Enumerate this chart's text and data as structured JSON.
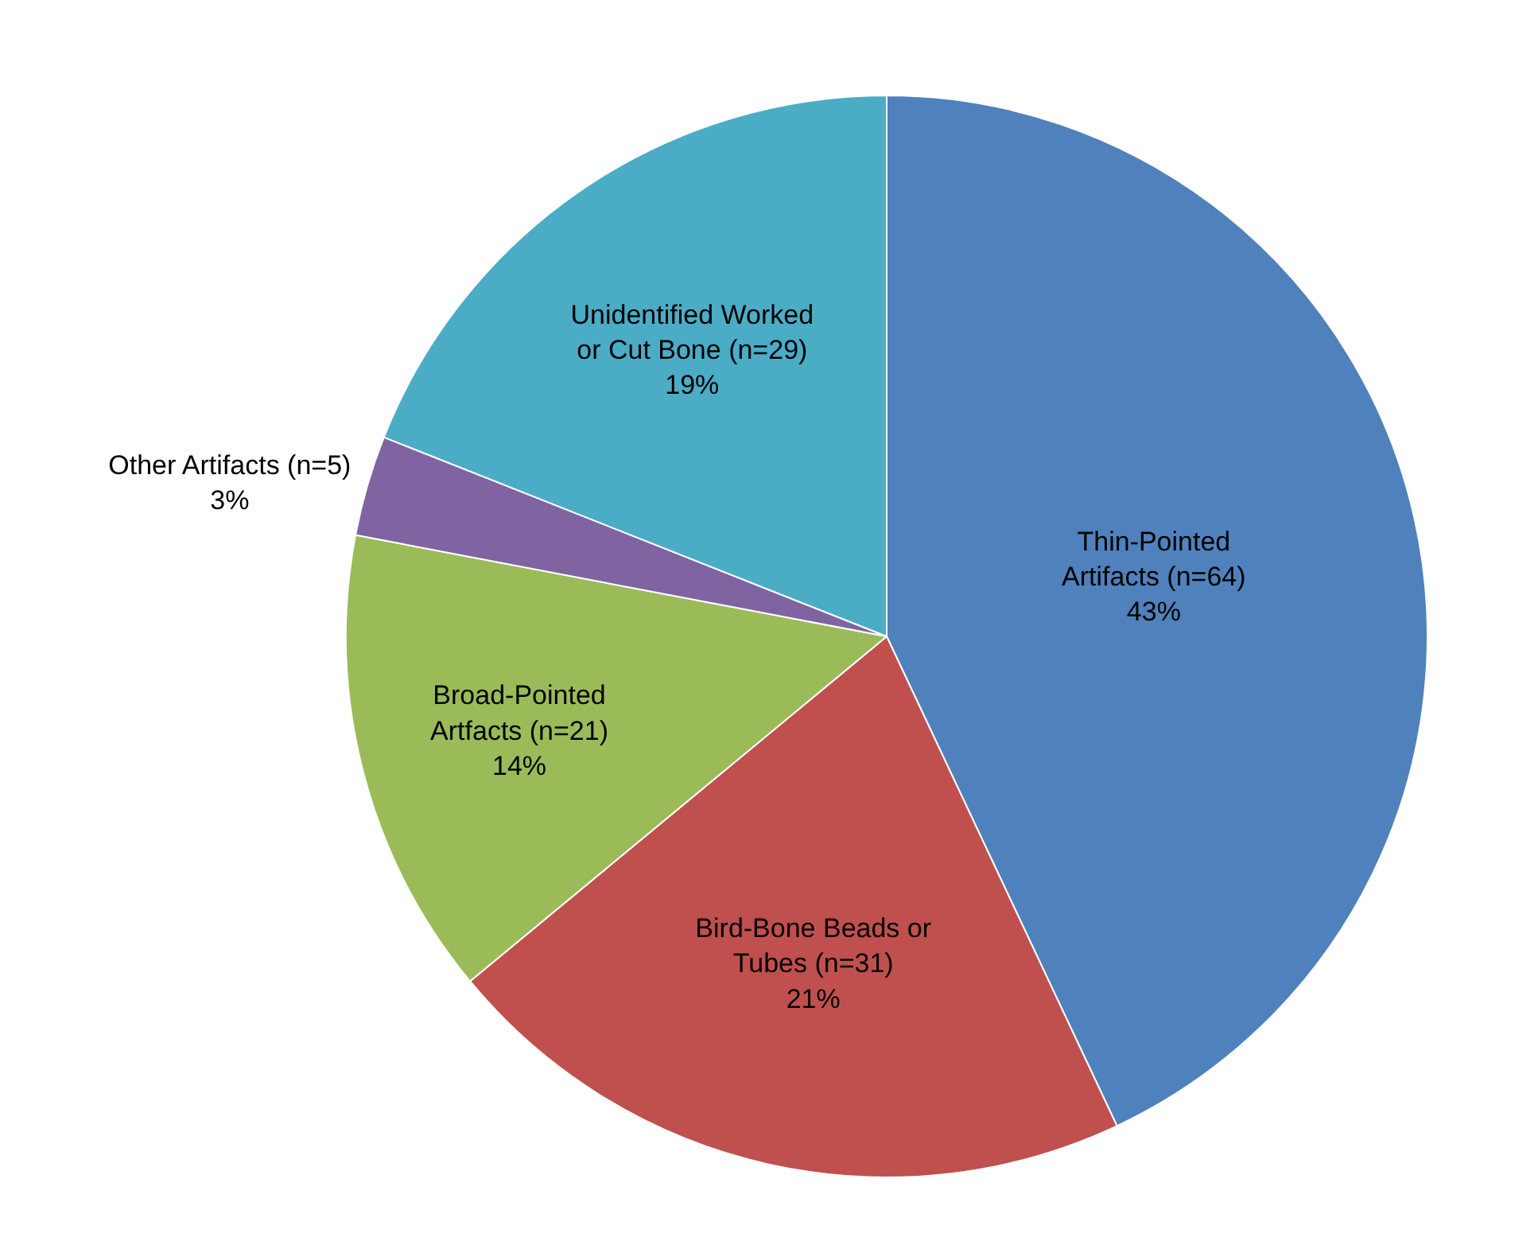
{
  "chart_data": {
    "type": "pie",
    "categories": [
      "Thin-Pointed Artifacts (n=64)",
      "Bird-Bone Beads or Tubes (n=31)",
      "Broad-Pointed Artfacts (n=21)",
      "Other Artifacts (n=5)",
      "Unidentified Worked or Cut Bone (n=29)"
    ],
    "values": [
      43,
      21,
      14,
      3,
      19
    ],
    "value_labels": [
      "43%",
      "21%",
      "14%",
      "3%",
      "19%"
    ],
    "colors": [
      "#4f81bd",
      "#c0504d",
      "#9bbb59",
      "#8064a2",
      "#4bacc6"
    ],
    "legend": false
  }
}
